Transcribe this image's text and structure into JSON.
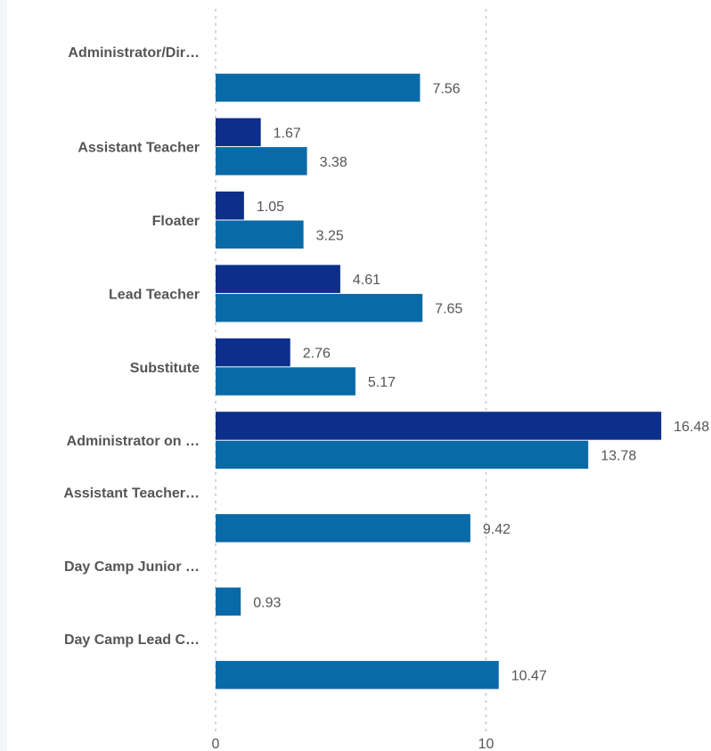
{
  "chart_data": {
    "type": "bar",
    "orientation": "horizontal",
    "categories": [
      "Administrator/Dir…",
      "Assistant Teacher",
      "Floater",
      "Lead Teacher",
      "Substitute",
      "Administrator on …",
      "Assistant Teacher…",
      "Day Camp Junior …",
      "Day Camp Lead C…"
    ],
    "series": [
      {
        "color": "#0b2f8a",
        "values": [
          null,
          1.67,
          1.05,
          4.61,
          2.76,
          16.48,
          null,
          null,
          null
        ],
        "labels": [
          "",
          "1.67",
          "1.05",
          "4.61",
          "2.76",
          "16.48",
          "",
          "",
          ""
        ]
      },
      {
        "color": "#0a6aa8",
        "values": [
          7.56,
          3.38,
          3.25,
          7.65,
          5.17,
          13.78,
          9.42,
          0.93,
          10.47
        ],
        "labels": [
          "7.56",
          "3.38",
          "3.25",
          "7.65",
          "5.17",
          "13.78",
          "9.42",
          "0.93",
          "10.47"
        ]
      }
    ],
    "x_ticks": [
      "0",
      "10"
    ],
    "xlim": [
      0,
      18.5
    ],
    "grid": true,
    "legend": "none"
  }
}
